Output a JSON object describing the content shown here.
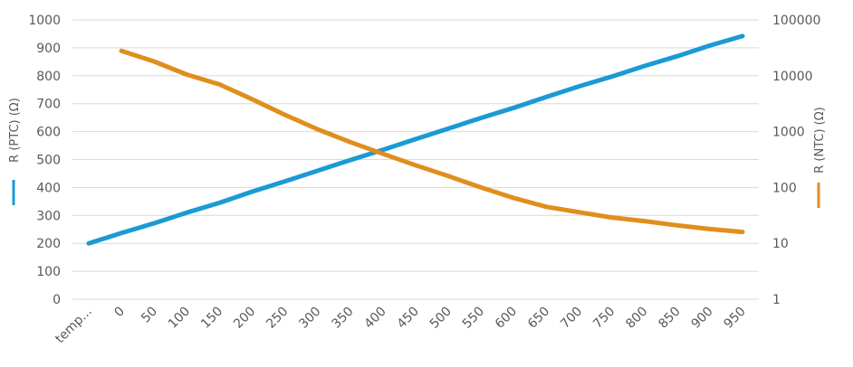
{
  "chart_data": {
    "type": "line",
    "title": "",
    "categories": [
      "temp...",
      "0",
      "50",
      "100",
      "150",
      "200",
      "250",
      "300",
      "350",
      "400",
      "450",
      "500",
      "550",
      "600",
      "650",
      "700",
      "750",
      "800",
      "850",
      "900",
      "950"
    ],
    "series": [
      {
        "name": "R (PTC) (Ω)",
        "axis": "left",
        "color": "#1a9ad6",
        "values": [
          200,
          237,
          272,
          310,
          345,
          385,
          422,
          460,
          498,
          535,
          573,
          611,
          649,
          685,
          724,
          762,
          797,
          835,
          870,
          908,
          942
        ]
      },
      {
        "name": "R (NTC) (Ω)",
        "axis": "right",
        "color": "#e08e1e",
        "values": [
          null,
          28000,
          18000,
          10500,
          7000,
          3800,
          2000,
          1100,
          650,
          400,
          250,
          160,
          100,
          65,
          45,
          36,
          29,
          25,
          21,
          18,
          16
        ]
      }
    ],
    "y_left": {
      "label": "R (PTC) (Ω)",
      "range": [
        0,
        1000
      ],
      "ticks": [
        "0",
        "100",
        "200",
        "300",
        "400",
        "500",
        "600",
        "700",
        "800",
        "900",
        "1000"
      ]
    },
    "y_right": {
      "label": "R (NTC) (Ω)",
      "scale": "log",
      "range": [
        1,
        100000
      ],
      "ticks": [
        "1",
        "10",
        "100",
        "1000",
        "10000",
        "100000"
      ]
    },
    "grid": true,
    "legend": "none"
  }
}
